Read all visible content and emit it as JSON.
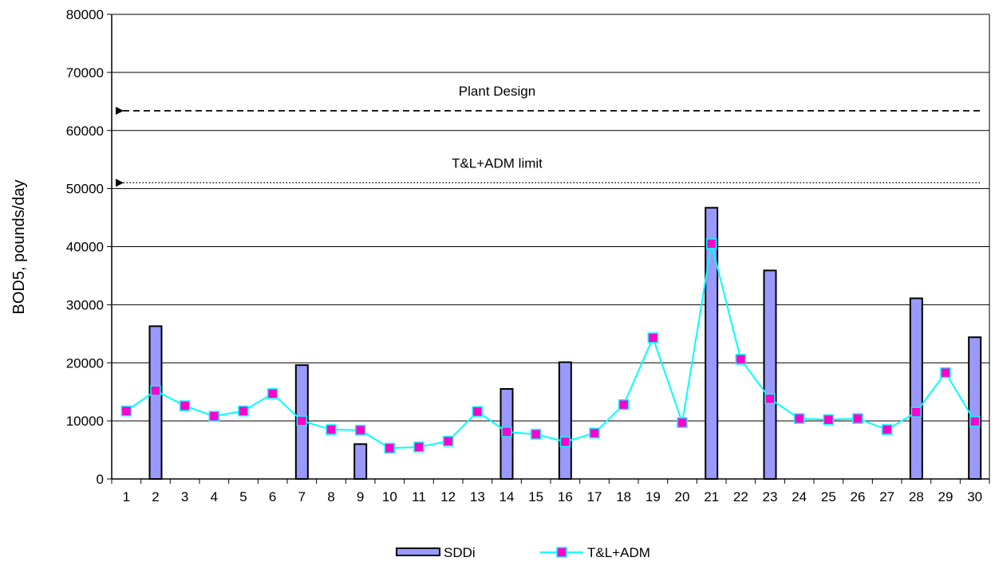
{
  "chart_data": {
    "type": "bar",
    "title": "",
    "xlabel": "",
    "ylabel": "BOD5, pounds/day",
    "ylim": [
      0,
      80000
    ],
    "yticks": [
      "0",
      "10000",
      "20000",
      "30000",
      "40000",
      "50000",
      "60000",
      "70000",
      "80000"
    ],
    "grid": true,
    "legend_position": "bottom",
    "categories": [
      "1",
      "2",
      "3",
      "4",
      "5",
      "6",
      "7",
      "8",
      "9",
      "10",
      "11",
      "12",
      "13",
      "14",
      "15",
      "16",
      "17",
      "18",
      "19",
      "20",
      "21",
      "22",
      "23",
      "24",
      "25",
      "26",
      "27",
      "28",
      "29",
      "30"
    ],
    "series": [
      {
        "name": "SDDi",
        "type": "bar",
        "color": "#9999ff",
        "values": [
          0,
          26300,
          0,
          0,
          0,
          0,
          19600,
          0,
          6000,
          0,
          0,
          0,
          0,
          15500,
          0,
          20100,
          0,
          0,
          0,
          0,
          46700,
          0,
          35900,
          0,
          0,
          0,
          0,
          31100,
          0,
          24400
        ]
      },
      {
        "name": "T&L+ADM",
        "type": "line",
        "color": "#00ffff",
        "marker_color": "#ff00cc",
        "values": [
          11700,
          15200,
          12600,
          10800,
          11700,
          14700,
          10000,
          8500,
          8400,
          5300,
          5500,
          6500,
          11600,
          8100,
          7700,
          6400,
          7900,
          12800,
          24300,
          9700,
          40500,
          20600,
          13800,
          10400,
          10200,
          10400,
          8500,
          11500,
          18300,
          9900
        ]
      }
    ],
    "annotations": [
      {
        "text": "Plant Design",
        "value": 63400,
        "style": "dashed"
      },
      {
        "text": "T&L+ADM limit",
        "value": 51000,
        "style": "dotted"
      }
    ]
  }
}
